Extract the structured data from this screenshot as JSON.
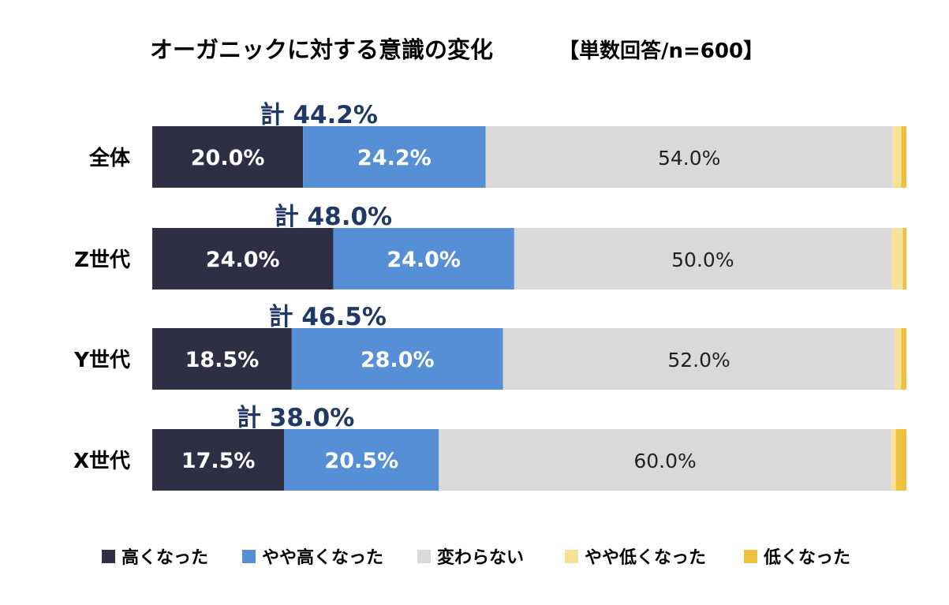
{
  "chart_data": {
    "type": "bar",
    "orientation": "horizontal",
    "stacked": true,
    "title": "オーガニックに対する意識の変化",
    "subtitle": "【単数回答/n=600】",
    "categories": [
      "全体",
      "Z世代",
      "Y世代",
      "X世代"
    ],
    "series": [
      {
        "name": "高くなった",
        "color": "#2e2f45",
        "values": [
          20.0,
          24.0,
          18.5,
          17.5
        ],
        "labels": [
          "20.0%",
          "24.0%",
          "18.5%",
          "17.5%"
        ]
      },
      {
        "name": "やや高くなった",
        "color": "#578fd6",
        "values": [
          24.2,
          24.0,
          28.0,
          20.5
        ],
        "labels": [
          "24.2%",
          "24.0%",
          "28.0%",
          "20.5%"
        ]
      },
      {
        "name": "変わらない",
        "color": "#d9d9d9",
        "values": [
          54.0,
          50.0,
          52.0,
          60.0
        ],
        "labels": [
          "54.0%",
          "50.0%",
          "52.0%",
          "60.0%"
        ]
      },
      {
        "name": "やや低くなった",
        "color": "#f6e199",
        "values": [
          1.1,
          1.5,
          0.8,
          0.6
        ]
      },
      {
        "name": "低くなった",
        "color": "#ecc240",
        "values": [
          0.7,
          0.5,
          0.7,
          1.4
        ]
      }
    ],
    "totals": [
      "計 44.2%",
      "計 48.0%",
      "計 46.5%",
      "計 38.0%"
    ],
    "xlim": [
      0,
      100
    ],
    "grid": false,
    "legend_position": "bottom"
  }
}
